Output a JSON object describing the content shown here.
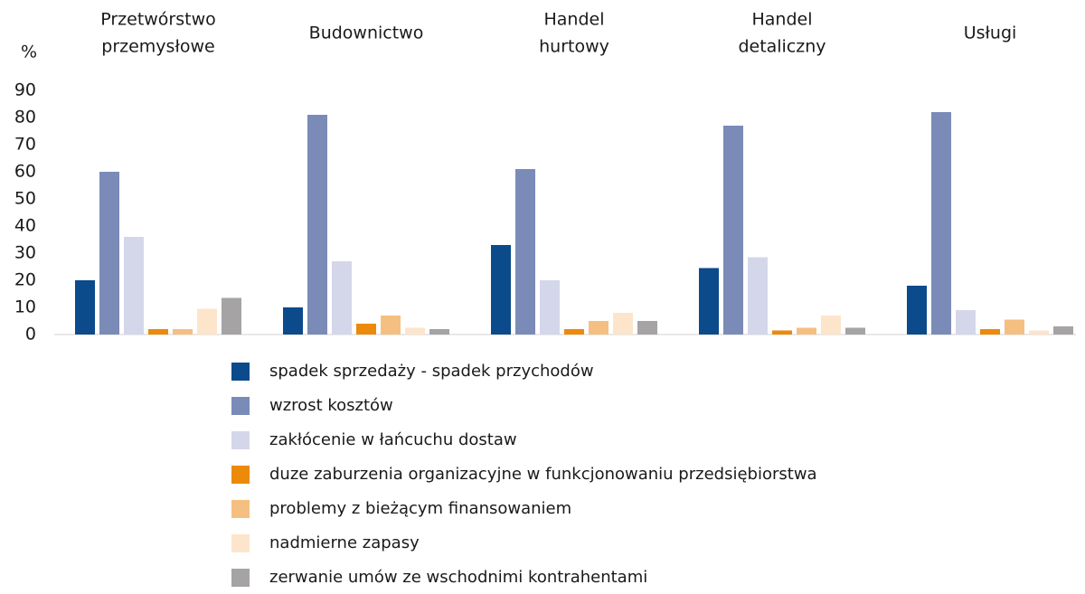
{
  "chart_data": {
    "type": "bar",
    "y_label": "%",
    "categories": [
      [
        "Przetwórstwo",
        "przemysłowe"
      ],
      [
        "Budownictwo"
      ],
      [
        "Handel",
        "hurtowy"
      ],
      [
        "Handel",
        "detaliczny"
      ],
      [
        "Usługi"
      ]
    ],
    "series": [
      {
        "name": "spadek sprzedaży - spadek przychodów",
        "color": "#0b4a8b",
        "values": [
          20,
          10,
          33,
          24.5,
          18
        ]
      },
      {
        "name": "wzrost kosztów",
        "color": "#7b8bb8",
        "values": [
          60,
          81,
          61,
          77,
          82
        ]
      },
      {
        "name": "zakłócenie w łańcuchu dostaw",
        "color": "#d4d7ea",
        "values": [
          36,
          27,
          20,
          28.5,
          9
        ]
      },
      {
        "name": "duze zaburzenia organizacyjne w funkcjonowaniu przedsiębiorstwa",
        "color": "#ec8a0c",
        "values": [
          2,
          4,
          2,
          1.5,
          2
        ]
      },
      {
        "name": "problemy z bieżącym finansowaniem",
        "color": "#f5bf82",
        "values": [
          2,
          7,
          5,
          2.5,
          5.5
        ]
      },
      {
        "name": "nadmierne zapasy",
        "color": "#fde5cc",
        "values": [
          9.5,
          2.5,
          8,
          7,
          1.5
        ]
      },
      {
        "name": "zerwanie umów ze wschodnimi kontrahentami",
        "color": "#a5a3a3",
        "values": [
          13.5,
          2,
          5,
          2.5,
          3
        ]
      }
    ],
    "ylim": [
      0,
      90
    ],
    "yticks": [
      0,
      10,
      20,
      30,
      40,
      50,
      60,
      70,
      80,
      90
    ],
    "grid": false,
    "legend": "bottom"
  }
}
